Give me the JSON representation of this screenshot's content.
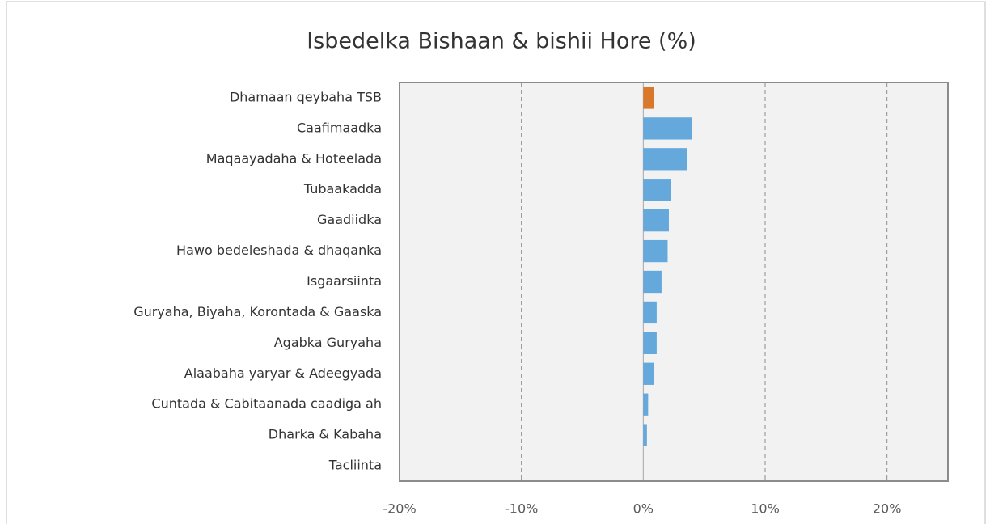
{
  "chart_data": {
    "type": "bar",
    "orientation": "horizontal",
    "title": "Isbedelka Bishaan & bishii Hore (%)",
    "categories": [
      "Dhamaan qeybaha  TSB",
      "Caafimaadka",
      "Maqaayadaha & Hoteelada",
      "Tubaakadda",
      "Gaadiidka",
      "Hawo bedeleshada & dhaqanka",
      "Isgaarsiinta",
      "Guryaha, Biyaha, Korontada & Gaaska",
      "Agabka Guryaha",
      "Alaabaha yaryar & Adeegyada",
      "Cuntada & Cabitaanada caadiga ah",
      "Dharka & Kabaha",
      "Tacliinta"
    ],
    "values": [
      0.9,
      4.0,
      3.6,
      2.3,
      2.1,
      2.0,
      1.5,
      1.1,
      1.1,
      0.9,
      0.4,
      0.3,
      0
    ],
    "colors": [
      "#d9782b",
      "#64a8dc",
      "#64a8dc",
      "#64a8dc",
      "#64a8dc",
      "#64a8dc",
      "#64a8dc",
      "#64a8dc",
      "#64a8dc",
      "#64a8dc",
      "#64a8dc",
      "#64a8dc",
      "#64a8dc"
    ],
    "xlim": [
      -20,
      25
    ],
    "xticks": [
      {
        "value": -20,
        "label": "-20%"
      },
      {
        "value": -10,
        "label": "-10%"
      },
      {
        "value": 0,
        "label": "0%"
      },
      {
        "value": 10,
        "label": "10%"
      },
      {
        "value": 20,
        "label": "20%"
      }
    ],
    "grid": true
  }
}
